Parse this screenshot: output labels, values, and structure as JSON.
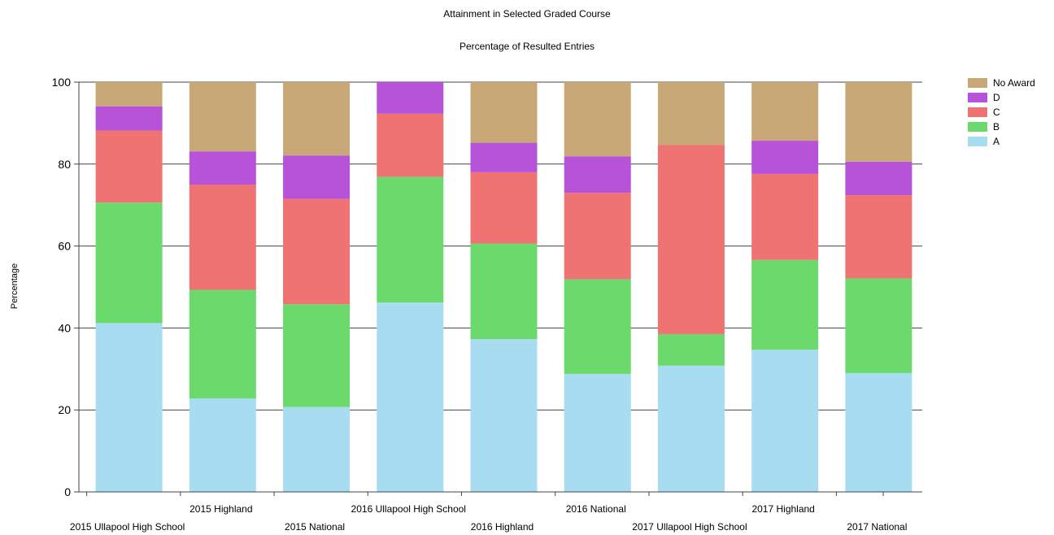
{
  "chart_data": {
    "type": "bar",
    "stacked": true,
    "title": "Attainment in Selected Graded Course",
    "subtitle": "Percentage of Resulted Entries",
    "xlabel": "",
    "ylabel": "Percentage",
    "ylim": [
      0,
      100
    ],
    "yticks": [
      0,
      20,
      40,
      60,
      80,
      100
    ],
    "grid": true,
    "legend_position": "top-right",
    "categories": [
      "2015 Ullapool High School",
      "2015 Highland",
      "2015 National",
      "2016 Ullapool High School",
      "2016 Highland",
      "2016 National",
      "2017 Ullapool High School",
      "2017 Highland",
      "2017 National"
    ],
    "series": [
      {
        "name": "A",
        "color": "#a8dcf0",
        "values": [
          41.2,
          22.8,
          20.7,
          46.2,
          37.3,
          28.8,
          30.8,
          34.7,
          29.0
        ]
      },
      {
        "name": "B",
        "color": "#6cd96c",
        "values": [
          29.4,
          26.5,
          25.1,
          30.7,
          23.3,
          23.1,
          7.7,
          21.9,
          23.1
        ]
      },
      {
        "name": "C",
        "color": "#ef7373",
        "values": [
          17.6,
          25.7,
          25.7,
          15.4,
          17.4,
          21.1,
          46.2,
          21.0,
          20.3
        ]
      },
      {
        "name": "D",
        "color": "#b653d9",
        "values": [
          5.9,
          8.1,
          10.6,
          7.7,
          7.2,
          8.9,
          0,
          8.1,
          8.2
        ]
      },
      {
        "name": "No Award",
        "color": "#c9a878",
        "values": [
          5.9,
          16.9,
          17.9,
          0,
          14.8,
          18.1,
          15.3,
          14.3,
          19.4
        ]
      }
    ]
  }
}
